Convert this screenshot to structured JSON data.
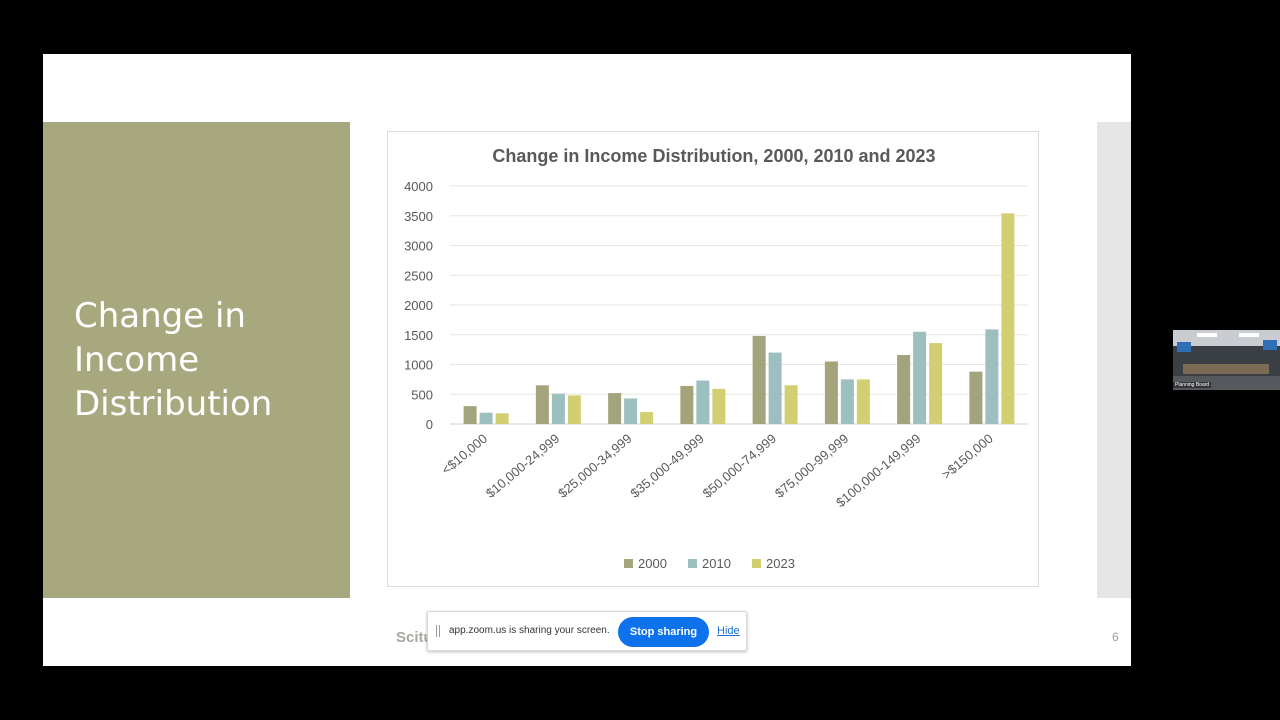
{
  "slide": {
    "title": "Change in Income Distribution",
    "footer_text": "Scitu",
    "page_number": "6",
    "colors": {
      "panel": "#a8a87e",
      "title_text": "#ffffff",
      "series_2000": "#a3a37c",
      "series_2010": "#9dbfbf",
      "series_2023": "#d2cf72"
    }
  },
  "chart_data": {
    "type": "bar",
    "title": "Change in Income Distribution, 2000, 2010 and 2023",
    "xlabel": "",
    "ylabel": "",
    "ylim": [
      0,
      4000
    ],
    "yticks": [
      0,
      500,
      1000,
      1500,
      2000,
      2500,
      3000,
      3500,
      4000
    ],
    "categories": [
      "<$10,000",
      "$10,000-24,999",
      "$25,000-34,999",
      "$35,000-49,999",
      "$50,000-74,999",
      "$75,000-99,999",
      "$100,000-149,999",
      ">$150,000"
    ],
    "series": [
      {
        "name": "2000",
        "color": "#a3a37c",
        "values": [
          300,
          650,
          520,
          640,
          1480,
          1050,
          1160,
          880
        ]
      },
      {
        "name": "2010",
        "color": "#9dbfbf",
        "values": [
          190,
          510,
          430,
          730,
          1200,
          750,
          1550,
          1590
        ]
      },
      {
        "name": "2023",
        "color": "#d2cf72",
        "values": [
          180,
          480,
          200,
          590,
          650,
          750,
          1360,
          3540
        ]
      }
    ],
    "legend": "bottom",
    "grid": true
  },
  "zoom_share_bar": {
    "message": "app.zoom.us is sharing your screen.",
    "stop_label": "Stop sharing",
    "hide_label": "Hide"
  },
  "video_thumbnail": {
    "label": "Planning Board"
  }
}
